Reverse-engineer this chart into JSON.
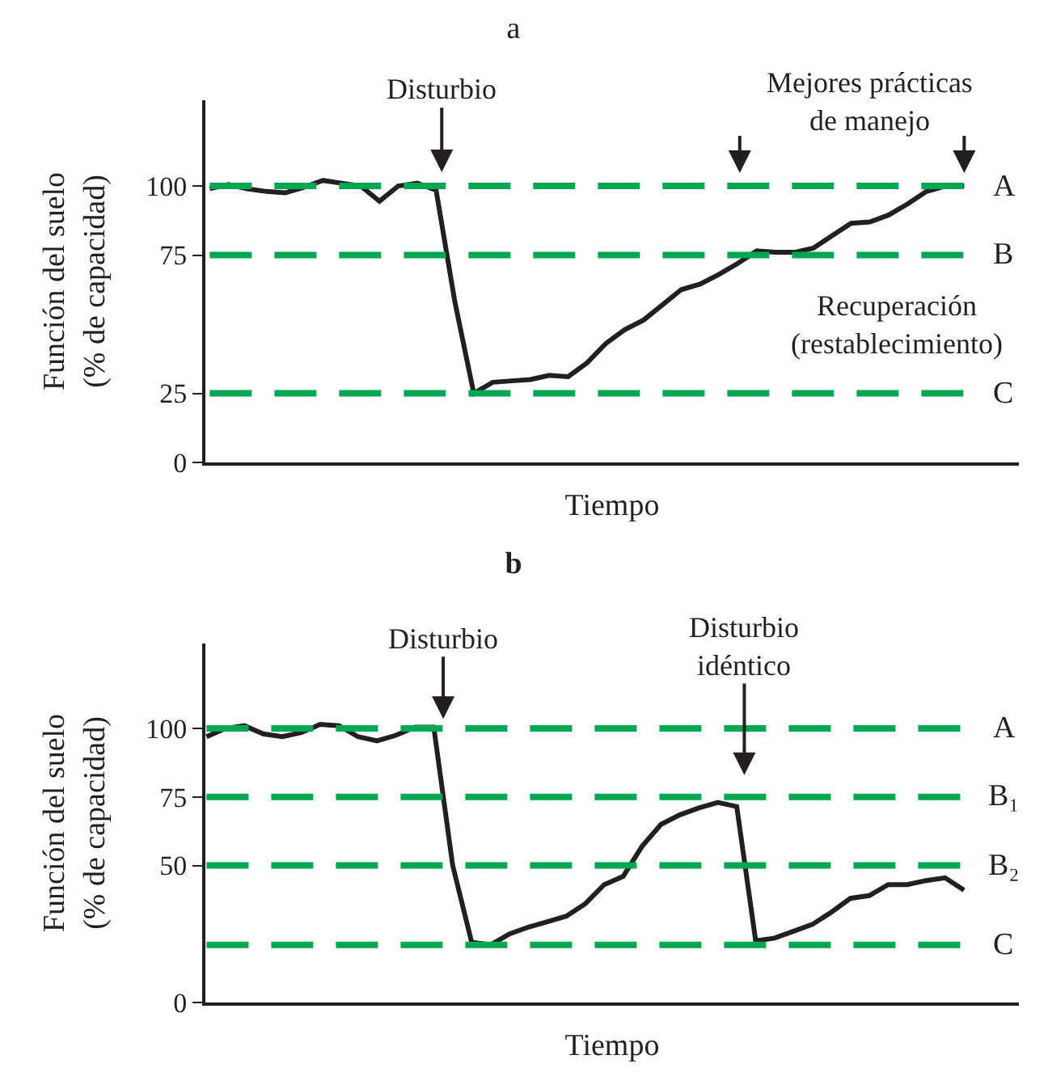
{
  "chart_data": [
    {
      "type": "line",
      "title": "a",
      "xlabel": "Tiempo",
      "ylabel": "Función del suelo\n(% de capacidad)",
      "categories": [
        null,
        null,
        null,
        null,
        null,
        null,
        null,
        null,
        null,
        null,
        null,
        null,
        null,
        null,
        null,
        null,
        null,
        null,
        null,
        null,
        null,
        null,
        null,
        null,
        null,
        null,
        null,
        null,
        null,
        null,
        null,
        null,
        null,
        null,
        null,
        null,
        null,
        null,
        null,
        null,
        null
      ],
      "series": [
        {
          "color": "#231f20",
          "values": [
            99,
            100.5,
            99,
            98,
            97.5,
            99.5,
            102,
            101,
            100,
            94.5,
            100,
            101,
            98.5,
            58,
            25,
            29,
            29.5,
            30,
            31.5,
            31,
            36,
            43,
            48,
            51.5,
            57,
            62.5,
            64.5,
            68,
            72,
            76.5,
            76,
            76,
            77.5,
            82,
            86.5,
            87,
            89.5,
            93.5,
            98,
            100,
            100
          ]
        }
      ],
      "ylim": [
        0,
        131
      ],
      "yticks": [
        0,
        25,
        75,
        100
      ],
      "tick_labels": "y",
      "ref_lines": [
        {
          "axis": "y",
          "value": 100,
          "label": "A",
          "color": "#00a651",
          "line_style": "dashed"
        },
        {
          "axis": "y",
          "value": 75,
          "label": "B",
          "color": "#00a651",
          "line_style": "dashed"
        },
        {
          "axis": "y",
          "value": 25,
          "label": "C",
          "color": "#00a651",
          "line_style": "dashed"
        }
      ],
      "annotations": [
        "Disturbio",
        "Mejores prácticas\nde manejo",
        "Recuperación\n(restablecimiento)"
      ]
    },
    {
      "type": "line",
      "title": "b",
      "xlabel": "Tiempo",
      "ylabel": "Función del suelo\n(% de capacidad)",
      "categories": [
        null,
        null,
        null,
        null,
        null,
        null,
        null,
        null,
        null,
        null,
        null,
        null,
        null,
        null,
        null,
        null,
        null,
        null,
        null,
        null,
        null,
        null,
        null,
        null,
        null,
        null,
        null,
        null,
        null,
        null,
        null,
        null,
        null,
        null,
        null,
        null,
        null,
        null,
        null,
        null,
        null
      ],
      "series": [
        {
          "color": "#231f20",
          "values": [
            97,
            100,
            101,
            98,
            97,
            98.5,
            101.5,
            101,
            97,
            95.5,
            97.5,
            100.5,
            100.5,
            50,
            22,
            21,
            25,
            27.5,
            29.5,
            31.5,
            36,
            43,
            46,
            57,
            65,
            68.5,
            71,
            73,
            71.5,
            22.5,
            23.5,
            26,
            28.5,
            33,
            38,
            39,
            43,
            43,
            44.5,
            45.5,
            41
          ]
        }
      ],
      "ylim": [
        0,
        131
      ],
      "yticks": [
        0,
        50,
        75,
        100
      ],
      "tick_labels": "y",
      "ref_lines": [
        {
          "axis": "y",
          "value": 100,
          "label": "A",
          "color": "#00a651",
          "line_style": "dashed"
        },
        {
          "axis": "y",
          "value": 75,
          "label": "B₁",
          "color": "#00a651",
          "line_style": "dashed"
        },
        {
          "axis": "y",
          "value": 50,
          "label": "B₂",
          "color": "#00a651",
          "line_style": "dashed"
        },
        {
          "axis": "y",
          "value": 21,
          "label": "C",
          "color": "#00a651",
          "line_style": "dashed"
        }
      ],
      "annotations": [
        "Disturbio",
        "Disturbio\nidéntico"
      ]
    }
  ]
}
